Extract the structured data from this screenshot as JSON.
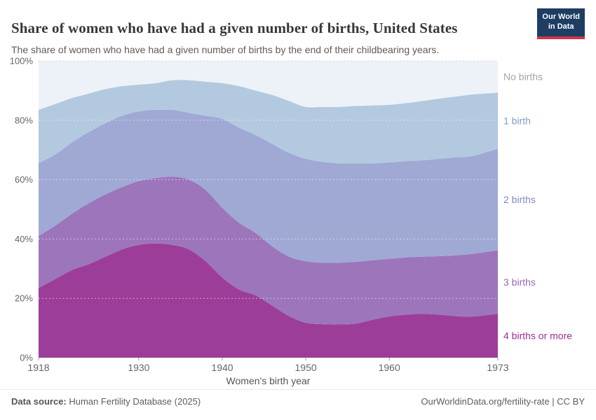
{
  "header": {
    "title": "Share of women who have had a given number of births, United States",
    "subtitle": "The share of women who have had a given number of births by the end of their childbearing years.",
    "logo_line1": "Our World",
    "logo_line2": "in Data"
  },
  "chart_data": {
    "type": "area",
    "stacked": true,
    "title": "Share of women who have had a given number of births, United States",
    "xlabel": "Women's birth year",
    "ylabel": "",
    "unit": "%",
    "xlim": [
      1918,
      1973
    ],
    "ylim": [
      0,
      100
    ],
    "x_ticks": [
      1918,
      1930,
      1940,
      1950,
      1960,
      1973
    ],
    "y_ticks": [
      0,
      20,
      40,
      60,
      80,
      100
    ],
    "grid": true,
    "legend_position": "right-inline-labels",
    "x": [
      1918,
      1920,
      1922,
      1924,
      1926,
      1928,
      1930,
      1932,
      1934,
      1936,
      1938,
      1940,
      1942,
      1944,
      1946,
      1948,
      1950,
      1952,
      1954,
      1956,
      1958,
      1960,
      1962,
      1964,
      1966,
      1968,
      1970,
      1973
    ],
    "series": [
      {
        "name": "4 births or more",
        "color": "#9c3e99",
        "label_color": "#9c2d99",
        "values": [
          23.5,
          26.5,
          29.5,
          31.5,
          34,
          36.5,
          38,
          38.5,
          38,
          36.5,
          32.5,
          27,
          23,
          21,
          17.5,
          14,
          11.8,
          11.3,
          11.2,
          11.5,
          12.8,
          13.9,
          14.5,
          14.8,
          14.5,
          14,
          13.9,
          14.8
        ]
      },
      {
        "name": "3 births",
        "color": "#9c75bb",
        "label_color": "#9869b8",
        "values": [
          17.5,
          18,
          19,
          20.5,
          21,
          21,
          21.5,
          22,
          23,
          23.5,
          24,
          23.5,
          22.5,
          21,
          20,
          20,
          20.7,
          20.7,
          20.8,
          20.8,
          20,
          19.4,
          19.3,
          19.2,
          19.7,
          20.5,
          21.1,
          21.4
        ]
      },
      {
        "name": "2 births",
        "color": "#9fa9d4",
        "label_color": "#7f89c6",
        "values": [
          24.5,
          24,
          24,
          24,
          24,
          24,
          23.5,
          23,
          22.5,
          22.5,
          25,
          30,
          32,
          33,
          34.5,
          35,
          34.5,
          34,
          33.5,
          33.2,
          32.7,
          32.5,
          32.4,
          32.5,
          32.8,
          33,
          33,
          34.2
        ]
      },
      {
        "name": "1 birth",
        "color": "#b3c9df",
        "label_color": "#7d9dc7",
        "values": [
          18,
          17,
          15,
          13,
          11.5,
          10,
          9,
          9,
          10,
          11,
          11.5,
          12,
          14,
          15,
          16.5,
          17.5,
          17.5,
          18.5,
          19,
          19.3,
          19.5,
          19.4,
          19.6,
          20,
          20.3,
          20.5,
          20.7,
          18.9
        ]
      },
      {
        "name": "No births",
        "color": "#ecf2f8",
        "label_color": "#a0a5a9",
        "values": [
          16.5,
          14.5,
          12.5,
          11,
          9.5,
          8.5,
          8,
          7.5,
          6.5,
          6.5,
          7,
          7.5,
          8.5,
          10,
          11.5,
          13.5,
          15.5,
          15.5,
          15.5,
          15.2,
          15,
          14.8,
          14.2,
          13.5,
          12.7,
          12,
          11.3,
          10.7
        ]
      }
    ]
  },
  "footer": {
    "source_label": "Data source:",
    "source_value": " Human Fertility Database (2025)",
    "credit": "OurWorldinData.org/fertility-rate | CC BY"
  }
}
